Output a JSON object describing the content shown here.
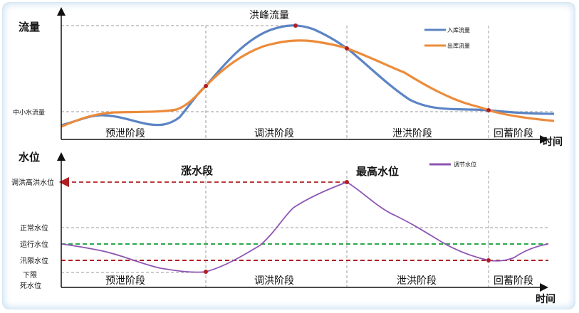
{
  "top_panel": {
    "title": "洪峰流量",
    "y_axis_label": "流量",
    "x_axis_label": "时间",
    "threshold_label": "中小水流量",
    "phases": [
      "预泄阶段",
      "调洪阶段",
      "泄洪阶段",
      "回蓄阶段"
    ],
    "legend": [
      {
        "name": "入库流量",
        "color": "#5b84c4"
      },
      {
        "name": "出库流量",
        "color": "#ec8b3a"
      }
    ]
  },
  "bottom_panel": {
    "y_axis_label": "水位",
    "x_axis_label": "时间",
    "level_labels": {
      "flood_high": "调洪高洪水位",
      "normal": "正常水位",
      "operating": "运行水位",
      "flood_limit": "汛限水位",
      "dead_1": "下限",
      "dead_2": "死水位"
    },
    "annotations": {
      "rising": "涨水段",
      "max_level": "最高水位"
    },
    "phases": [
      "预泄阶段",
      "调洪阶段",
      "泄洪阶段",
      "回蓄阶段"
    ],
    "legend": [
      {
        "name": "调节水位",
        "color": "#8e55b4"
      }
    ]
  },
  "colors": {
    "inflow": "#5b84c4",
    "outflow": "#ec8b3a",
    "water_level": "#8e55b4",
    "operating_line": "#2aa84a",
    "red_dashed": "#b01e23",
    "grid_dashed": "#9a9a9a",
    "marker": "#b01e23"
  }
}
